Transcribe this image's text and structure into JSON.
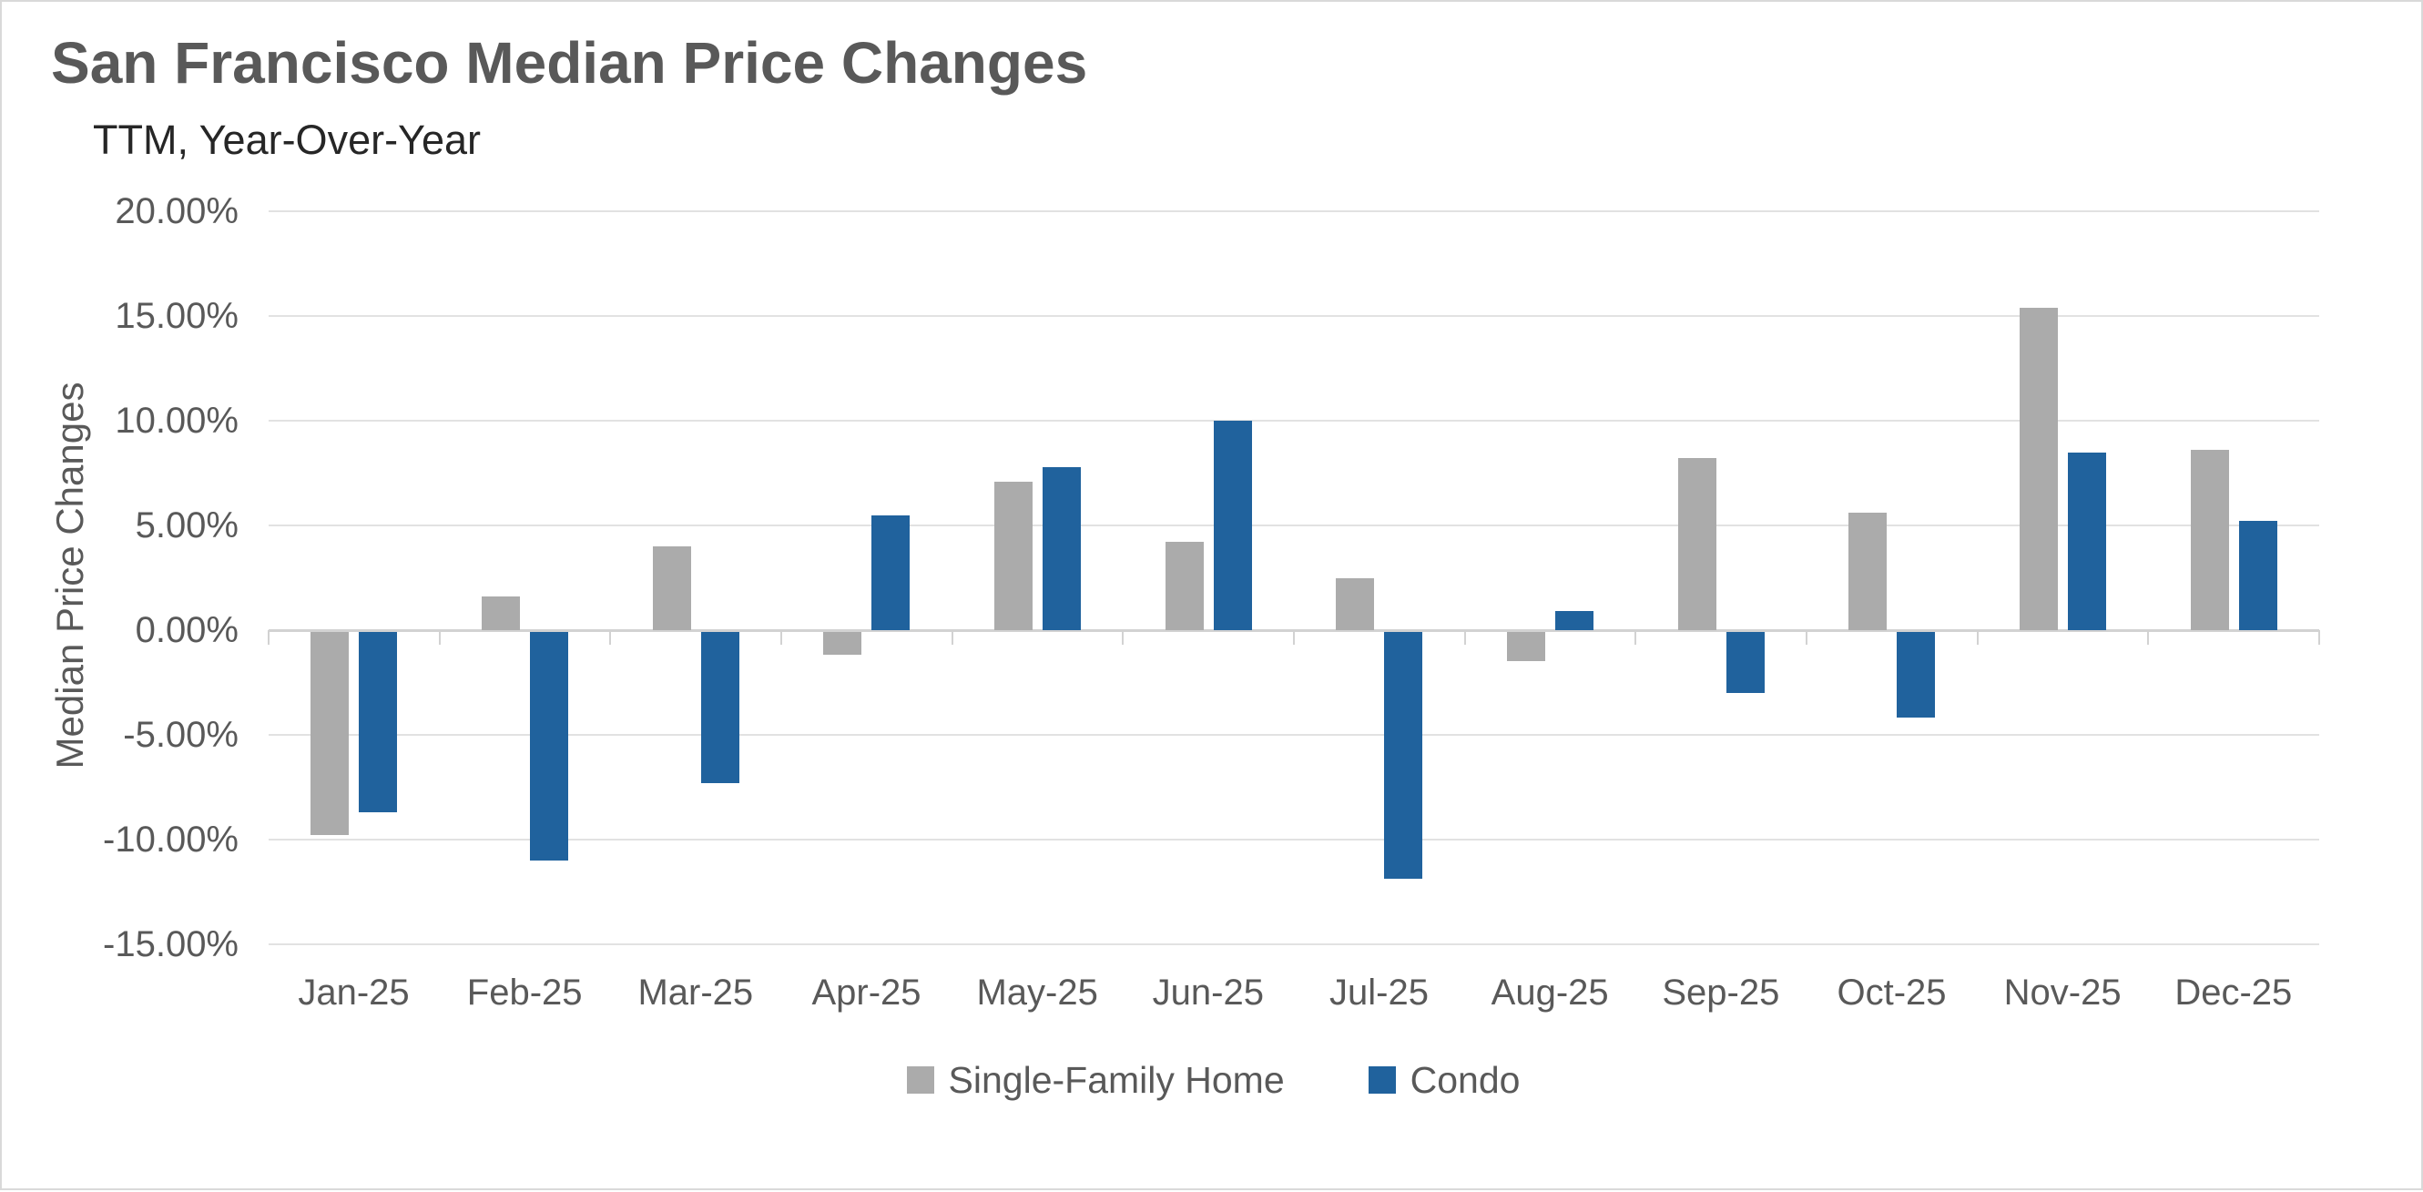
{
  "header": {
    "title": "San Francisco Median Price Changes",
    "subtitle": "TTM, Year-Over-Year"
  },
  "chart_data": {
    "type": "bar",
    "title": "San Francisco Median Price Changes",
    "subtitle": "TTM, Year-Over-Year",
    "xlabel": "",
    "ylabel": "Median Price Changes",
    "categories": [
      "Jan-25",
      "Feb-25",
      "Mar-25",
      "Apr-25",
      "May-25",
      "Jun-25",
      "Jul-25",
      "Aug-25",
      "Sep-25",
      "Oct-25",
      "Nov-25",
      "Dec-25"
    ],
    "series": [
      {
        "name": "Single-Family Home",
        "color": "#ABABAB",
        "values": [
          -9.7,
          1.6,
          4.0,
          -1.1,
          7.1,
          4.2,
          2.5,
          -1.4,
          8.2,
          5.6,
          15.4,
          8.6
        ]
      },
      {
        "name": "Condo",
        "color": "#20629D",
        "values": [
          -8.6,
          -10.9,
          -7.2,
          5.5,
          7.8,
          10.0,
          -11.8,
          0.9,
          -2.9,
          -4.1,
          8.5,
          5.2
        ]
      }
    ],
    "value_unit": "percent_year_over_year",
    "ylim": [
      -15,
      20
    ],
    "y_tick_step": 5,
    "y_ticks": [
      "20.00%",
      "15.00%",
      "10.00%",
      "5.00%",
      "0.00%",
      "-5.00%",
      "-10.00%",
      "-15.00%"
    ],
    "grid": true,
    "legend_position": "bottom",
    "colors": {
      "gridline": "#E2E2E2",
      "axis_line": "#D2D2D2",
      "title_text": "#595959",
      "subtitle_text": "#262626",
      "axis_text": "#595959"
    }
  }
}
